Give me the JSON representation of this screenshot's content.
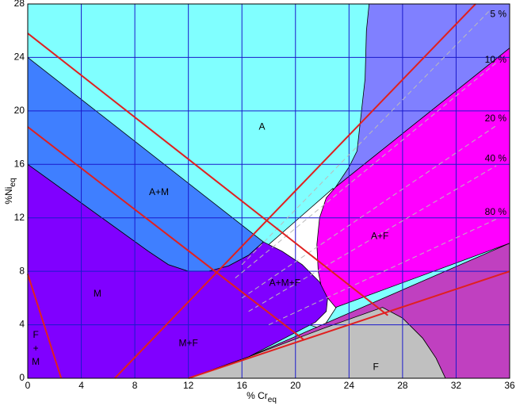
{
  "chart_data": {
    "type": "phase-diagram",
    "x_label": {
      "text": "% Cr",
      "sub": "eq"
    },
    "y_label": {
      "text": "%Ni",
      "sub": "eq"
    },
    "xlim": [
      0,
      36
    ],
    "ylim": [
      0,
      28
    ],
    "xticks": [
      0,
      4,
      8,
      12,
      16,
      20,
      24,
      28,
      32,
      36
    ],
    "yticks": [
      0,
      4,
      8,
      12,
      16,
      20,
      24,
      28
    ],
    "grid": true,
    "grid_color": "#1a1acc",
    "background": "#80ffff",
    "regions": [
      {
        "color": "#8080ff",
        "x": [
          25.5,
          36,
          36,
          23,
          24,
          24.6,
          25.2,
          25.3
        ],
        "y": [
          28,
          28,
          24.7,
          14.3,
          15.8,
          17,
          22.4,
          26
        ]
      },
      {
        "color": "#ffffff",
        "x": [
          18,
          22.8,
          23.5,
          22,
          21
        ],
        "y": [
          10,
          14.2,
          6,
          3.7,
          4
        ]
      },
      {
        "color": "#ff00ff",
        "x": [
          23,
          36,
          36,
          23,
          22,
          21.7,
          21.6,
          21.8,
          22.3
        ],
        "y": [
          14.3,
          24.7,
          10.1,
          5.3,
          6.5,
          8,
          10,
          12,
          13.5
        ]
      },
      {
        "color": "#3f7fff",
        "x": [
          0,
          17.6,
          16.5,
          15,
          13.5,
          12,
          10.5,
          9,
          0
        ],
        "y": [
          24,
          10.2,
          9.2,
          8.4,
          8,
          8,
          8.5,
          9.5,
          16
        ]
      },
      {
        "color": "#8000ff",
        "x": [
          0,
          9,
          10.5,
          12,
          13.5,
          15,
          16.5,
          17.6,
          19,
          20.5,
          21.8,
          22.4,
          22.3,
          21.5,
          16.5,
          12,
          0
        ],
        "y": [
          16,
          9.5,
          8.5,
          8,
          8,
          8.4,
          9.2,
          10.2,
          9.5,
          8.5,
          7.2,
          6,
          5,
          4.2,
          1.6,
          0,
          0
        ]
      },
      {
        "color": "#c040c0",
        "x": [
          16.5,
          36,
          36,
          31.2,
          30.5,
          29.5,
          28,
          26.5
        ],
        "y": [
          1.6,
          10.1,
          0,
          0,
          1.5,
          3,
          4.5,
          5.3
        ]
      },
      {
        "color": "#c0c0c0",
        "x": [
          12,
          16.5,
          22,
          26.5,
          28,
          29.5,
          30.5,
          31.2
        ],
        "y": [
          0,
          1.6,
          3.7,
          5.3,
          4.5,
          3,
          1.5,
          0
        ]
      }
    ],
    "ferrite_lines": [
      {
        "name": "5 %",
        "x": [
          16,
          34.5
        ],
        "y": [
          8.5,
          27.5
        ]
      },
      {
        "name": "10 %",
        "x": [
          15.5,
          35
        ],
        "y": [
          7.5,
          23.6
        ]
      },
      {
        "name": "20 %",
        "x": [
          16,
          35
        ],
        "y": [
          6,
          18.9
        ]
      },
      {
        "name": "40 %",
        "x": [
          16.5,
          35
        ],
        "y": [
          5,
          15.9
        ]
      },
      {
        "name": "80 %",
        "x": [
          18,
          35
        ],
        "y": [
          4,
          11.9
        ]
      }
    ],
    "lines": [
      {
        "color": "#e02020",
        "x": [
          0,
          26.9
        ],
        "y": [
          25.8,
          4.7
        ]
      },
      {
        "color": "#e02020",
        "x": [
          0,
          20.6
        ],
        "y": [
          18.8,
          2.9
        ]
      },
      {
        "color": "#e02020",
        "x": [
          0,
          2.5
        ],
        "y": [
          7.8,
          0
        ]
      },
      {
        "color": "#e02020",
        "x": [
          6.5,
          33.45
        ],
        "y": [
          0,
          28
        ]
      },
      {
        "color": "#e02020",
        "x": [
          12,
          36
        ],
        "y": [
          0,
          8
        ]
      }
    ],
    "labels": [
      "A",
      "A+M",
      "M",
      "F",
      "+",
      "M",
      "M+F",
      "A+M+F",
      "A+F",
      "F"
    ]
  }
}
